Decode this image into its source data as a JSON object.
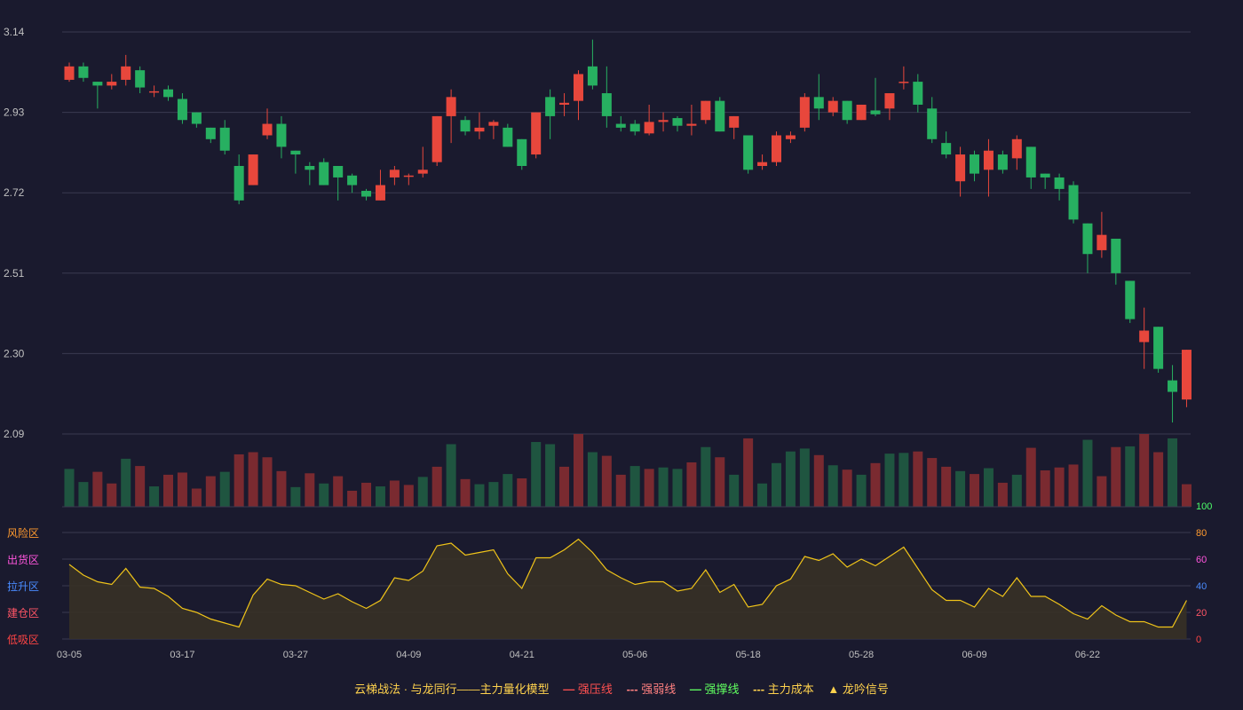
{
  "colors": {
    "background": "#1a1a2e",
    "grid": "#3a3a50",
    "up": "#e8473c",
    "down": "#27b061",
    "up_volume": "#7a2a30",
    "down_volume": "#1f5540",
    "indicator_line": "#f0c419",
    "indicator_fill": "#3a3325",
    "axis_text": "#c0c0c0"
  },
  "chart_data": {
    "type": "candlestick",
    "y_ticks": [
      "3.14",
      "2.93",
      "2.72",
      "2.51",
      "2.30",
      "2.09"
    ],
    "ylim": [
      2.09,
      3.14
    ],
    "x_ticks": [
      "03-05",
      "03-17",
      "03-27",
      "04-09",
      "04-21",
      "05-06",
      "05-18",
      "05-28",
      "06-09",
      "06-22"
    ],
    "x_tick_index": [
      0,
      8,
      16,
      24,
      32,
      40,
      48,
      56,
      64,
      72
    ],
    "candles": [
      [
        3.015,
        3.05,
        3.06,
        3.01
      ],
      [
        3.05,
        3.02,
        3.06,
        3.01
      ],
      [
        3.01,
        3.0,
        3.01,
        2.94
      ],
      [
        3.0,
        3.01,
        3.03,
        2.99
      ],
      [
        3.015,
        3.05,
        3.08,
        3.0
      ],
      [
        3.04,
        2.995,
        3.05,
        2.98
      ],
      [
        2.985,
        2.985,
        3.0,
        2.97
      ],
      [
        2.99,
        2.97,
        3.0,
        2.96
      ],
      [
        2.965,
        2.91,
        2.98,
        2.9
      ],
      [
        2.93,
        2.9,
        2.93,
        2.89
      ],
      [
        2.89,
        2.86,
        2.89,
        2.85
      ],
      [
        2.89,
        2.83,
        2.91,
        2.82
      ],
      [
        2.79,
        2.7,
        2.82,
        2.69
      ],
      [
        2.74,
        2.82,
        2.82,
        2.74
      ],
      [
        2.87,
        2.9,
        2.94,
        2.86
      ],
      [
        2.9,
        2.84,
        2.92,
        2.81
      ],
      [
        2.83,
        2.82,
        2.83,
        2.77
      ],
      [
        2.79,
        2.78,
        2.8,
        2.74
      ],
      [
        2.8,
        2.74,
        2.81,
        2.74
      ],
      [
        2.79,
        2.76,
        2.79,
        2.7
      ],
      [
        2.765,
        2.74,
        2.77,
        2.72
      ],
      [
        2.725,
        2.71,
        2.73,
        2.7
      ],
      [
        2.7,
        2.74,
        2.78,
        2.7
      ],
      [
        2.76,
        2.78,
        2.79,
        2.74
      ],
      [
        2.765,
        2.765,
        2.77,
        2.74
      ],
      [
        2.77,
        2.78,
        2.84,
        2.76
      ],
      [
        2.8,
        2.92,
        2.92,
        2.79
      ],
      [
        2.92,
        2.97,
        2.99,
        2.85
      ],
      [
        2.91,
        2.88,
        2.92,
        2.87
      ],
      [
        2.88,
        2.89,
        2.93,
        2.86
      ],
      [
        2.895,
        2.905,
        2.91,
        2.86
      ],
      [
        2.89,
        2.84,
        2.9,
        2.84
      ],
      [
        2.86,
        2.79,
        2.86,
        2.78
      ],
      [
        2.82,
        2.93,
        2.93,
        2.81
      ],
      [
        2.97,
        2.92,
        2.99,
        2.86
      ],
      [
        2.95,
        2.955,
        2.98,
        2.92
      ],
      [
        2.96,
        3.03,
        3.04,
        2.91
      ],
      [
        3.05,
        3.0,
        3.12,
        2.99
      ],
      [
        2.98,
        2.92,
        3.05,
        2.89
      ],
      [
        2.9,
        2.89,
        2.92,
        2.88
      ],
      [
        2.9,
        2.88,
        2.91,
        2.87
      ],
      [
        2.875,
        2.905,
        2.95,
        2.87
      ],
      [
        2.905,
        2.91,
        2.93,
        2.88
      ],
      [
        2.915,
        2.895,
        2.92,
        2.88
      ],
      [
        2.895,
        2.9,
        2.95,
        2.87
      ],
      [
        2.91,
        2.96,
        2.96,
        2.9
      ],
      [
        2.96,
        2.88,
        2.97,
        2.88
      ],
      [
        2.89,
        2.92,
        2.92,
        2.86
      ],
      [
        2.87,
        2.78,
        2.87,
        2.77
      ],
      [
        2.79,
        2.8,
        2.82,
        2.78
      ],
      [
        2.8,
        2.87,
        2.88,
        2.79
      ],
      [
        2.86,
        2.87,
        2.88,
        2.85
      ],
      [
        2.89,
        2.97,
        2.98,
        2.88
      ],
      [
        2.97,
        2.94,
        3.03,
        2.91
      ],
      [
        2.93,
        2.96,
        2.97,
        2.92
      ],
      [
        2.96,
        2.91,
        2.96,
        2.9
      ],
      [
        2.91,
        2.95,
        2.95,
        2.91
      ],
      [
        2.935,
        2.925,
        3.02,
        2.92
      ],
      [
        2.94,
        2.98,
        2.98,
        2.91
      ],
      [
        3.01,
        3.01,
        3.05,
        2.99
      ],
      [
        3.01,
        2.95,
        3.03,
        2.93
      ],
      [
        2.94,
        2.86,
        2.97,
        2.85
      ],
      [
        2.85,
        2.82,
        2.88,
        2.81
      ],
      [
        2.75,
        2.82,
        2.84,
        2.71
      ],
      [
        2.82,
        2.77,
        2.83,
        2.75
      ],
      [
        2.78,
        2.83,
        2.86,
        2.71
      ],
      [
        2.82,
        2.78,
        2.83,
        2.77
      ],
      [
        2.81,
        2.86,
        2.87,
        2.78
      ],
      [
        2.84,
        2.76,
        2.84,
        2.73
      ],
      [
        2.77,
        2.76,
        2.77,
        2.73
      ],
      [
        2.76,
        2.73,
        2.77,
        2.7
      ],
      [
        2.74,
        2.65,
        2.75,
        2.64
      ],
      [
        2.64,
        2.56,
        2.64,
        2.51
      ],
      [
        2.57,
        2.61,
        2.67,
        2.55
      ],
      [
        2.6,
        2.51,
        2.6,
        2.48
      ],
      [
        2.49,
        2.39,
        2.49,
        2.38
      ],
      [
        2.33,
        2.36,
        2.42,
        2.26
      ],
      [
        2.37,
        2.26,
        2.37,
        2.25
      ],
      [
        2.23,
        2.2,
        2.27,
        2.12
      ],
      [
        2.18,
        2.31,
        2.31,
        2.16
      ]
    ],
    "volume_up": [
      false,
      false,
      true,
      true,
      false,
      true,
      false,
      true,
      true,
      true,
      true,
      false,
      true,
      true,
      true,
      true,
      false,
      true,
      false,
      true,
      true,
      true,
      false,
      true,
      true,
      false,
      true,
      false,
      true,
      false,
      false,
      false,
      true,
      false,
      false,
      true,
      true,
      false,
      true,
      true,
      false,
      true,
      false,
      false,
      true,
      false,
      true,
      false,
      true,
      false,
      false,
      false,
      false,
      true,
      false,
      true,
      false,
      true,
      false,
      false,
      true,
      true,
      true,
      false,
      true,
      false,
      true,
      false,
      true,
      true,
      true,
      true,
      false,
      true,
      true,
      false,
      true,
      true,
      false,
      true
    ],
    "volume": [
      0.52,
      0.34,
      0.48,
      0.32,
      0.66,
      0.56,
      0.28,
      0.44,
      0.47,
      0.25,
      0.42,
      0.48,
      0.72,
      0.75,
      0.68,
      0.49,
      0.27,
      0.46,
      0.32,
      0.42,
      0.22,
      0.33,
      0.28,
      0.36,
      0.3,
      0.41,
      0.55,
      0.86,
      0.38,
      0.31,
      0.34,
      0.45,
      0.39,
      0.89,
      0.86,
      0.55,
      1.0,
      0.75,
      0.7,
      0.44,
      0.56,
      0.52,
      0.54,
      0.52,
      0.61,
      0.82,
      0.68,
      0.44,
      0.94,
      0.32,
      0.6,
      0.76,
      0.8,
      0.71,
      0.57,
      0.51,
      0.44,
      0.6,
      0.73,
      0.74,
      0.76,
      0.67,
      0.55,
      0.49,
      0.45,
      0.53,
      0.33,
      0.44,
      0.81,
      0.5,
      0.54,
      0.58,
      0.92,
      0.42,
      0.82,
      0.83,
      1.0,
      0.75,
      0.94,
      0.31
    ],
    "indicator_ticks": [
      "100",
      "80",
      "60",
      "40",
      "20",
      "0"
    ],
    "indicator_tick_colors": [
      "#4cff6a",
      "#ff9a2e",
      "#ff55dd",
      "#4a8cff",
      "#ff5566",
      "#ff4444"
    ],
    "indicator_ylim": [
      0,
      100
    ],
    "indicator": [
      56,
      48,
      43,
      41,
      53,
      39,
      38,
      32,
      23,
      20,
      15,
      12,
      9,
      33,
      45,
      41,
      40,
      35,
      30,
      34,
      28,
      23,
      29,
      46,
      44,
      51,
      70,
      72,
      63,
      65,
      67,
      49,
      38,
      61,
      61,
      67,
      75,
      65,
      52,
      46,
      41,
      43,
      43,
      36,
      38,
      52,
      35,
      41,
      24,
      26,
      40,
      45,
      62,
      59,
      64,
      54,
      60,
      55,
      62,
      69,
      53,
      37,
      29,
      29,
      24,
      38,
      32,
      46,
      32,
      32,
      26,
      19,
      15,
      25,
      18,
      13,
      13,
      9,
      9,
      29
    ],
    "zones": [
      {
        "label": "风险区",
        "color": "#ff9a2e"
      },
      {
        "label": "出货区",
        "color": "#ff55dd"
      },
      {
        "label": "拉升区",
        "color": "#4a8cff"
      },
      {
        "label": "建仓区",
        "color": "#ff5566"
      },
      {
        "label": "低吸区",
        "color": "#ff4444"
      }
    ]
  },
  "legend": {
    "title": "云梯战法 · 与龙同行——主力量化模型",
    "items": [
      {
        "symbol": "—",
        "label": "强压线",
        "color": "#ff5050"
      },
      {
        "symbol": "---",
        "label": "强弱线",
        "color": "#ff8080"
      },
      {
        "symbol": "—",
        "label": "强撑线",
        "color": "#60ff60"
      },
      {
        "symbol": "---",
        "label": "主力成本",
        "color": "#ffd24d"
      },
      {
        "symbol": "▲",
        "label": "龙吟信号",
        "color": "#ffd24d"
      }
    ]
  }
}
